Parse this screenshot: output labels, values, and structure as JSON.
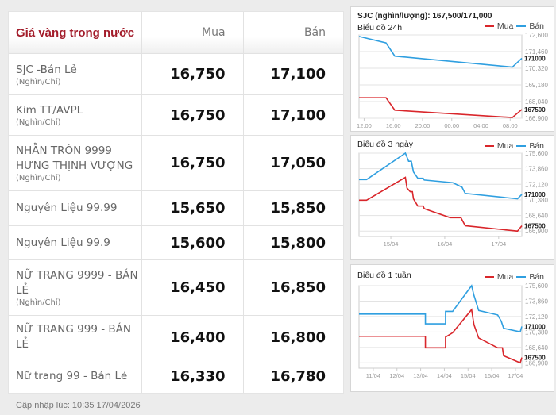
{
  "table": {
    "header": {
      "name": "Giá vàng trong nước",
      "buy": "Mua",
      "sell": "Bán"
    },
    "rows": [
      {
        "name": "SJC -Bán Lẻ",
        "unit": "(Nghìn/Chỉ)",
        "buy": "16,750",
        "sell": "17,100"
      },
      {
        "name": "Kim TT/AVPL",
        "unit": "(Nghìn/Chỉ)",
        "buy": "16,750",
        "sell": "17,100"
      },
      {
        "name": "NHẪN TRÒN 9999 HƯNG THỊNH VƯỢNG",
        "unit": "(Nghìn/Chỉ)",
        "buy": "16,750",
        "sell": "17,050"
      },
      {
        "name": "Nguyên Liệu 99.99",
        "unit": "",
        "buy": "15,650",
        "sell": "15,850"
      },
      {
        "name": "Nguyên Liệu 99.9",
        "unit": "",
        "buy": "15,600",
        "sell": "15,800"
      },
      {
        "name": "NỮ TRANG 9999 - BÁN LẺ",
        "unit": "(Nghìn/Chỉ)",
        "buy": "16,450",
        "sell": "16,850"
      },
      {
        "name": "NỮ TRANG 999 - BÁN LẺ",
        "unit": "",
        "buy": "16,400",
        "sell": "16,800"
      },
      {
        "name": "Nữ trang 99 - Bán Lẻ",
        "unit": "",
        "buy": "16,330",
        "sell": "16,780"
      }
    ]
  },
  "updated": "Cập nhập lúc: 10:35 17/04/2026",
  "chart_heading": "SJC (nghìn/lượng): 167,500/171,000",
  "colors": {
    "buy": "#d9262b",
    "sell": "#2f9fe0"
  },
  "chart_data": [
    {
      "type": "line",
      "title": "Biểu đồ 24h",
      "legend": [
        "Mua",
        "Bán"
      ],
      "legend_position": "top-right",
      "ylim": [
        166900,
        172600
      ],
      "yticks": [
        "172,600",
        "171,460",
        "170,320",
        "169,180",
        "168,040",
        "166,900"
      ],
      "ytick_values": [
        172600,
        171460,
        170320,
        169180,
        168040,
        166900
      ],
      "xticks": [
        "12:00",
        "16:00",
        "20:00",
        "00:00",
        "04:00",
        "08:00"
      ],
      "xtick_values": [
        1,
        5,
        9,
        13,
        17,
        21
      ],
      "xlim": [
        0.3,
        22.6
      ],
      "last_labels": [
        "171000",
        "167500"
      ],
      "series": [
        {
          "name": "Bán",
          "points": [
            [
              0.3,
              172500
            ],
            [
              4,
              172050
            ],
            [
              5.2,
              171150
            ],
            [
              21.3,
              170400
            ],
            [
              22.6,
              171000
            ]
          ]
        },
        {
          "name": "Mua",
          "points": [
            [
              0.3,
              168300
            ],
            [
              4,
              168300
            ],
            [
              5.2,
              167450
            ],
            [
              21.3,
              166950
            ],
            [
              22.6,
              167500
            ]
          ]
        }
      ]
    },
    {
      "type": "line",
      "title": "Biểu đồ 3 ngày",
      "legend": [
        "Mua",
        "Bán"
      ],
      "legend_position": "top-right",
      "ylim": [
        166300,
        175600
      ],
      "yticks": [
        "175,600",
        "173,860",
        "172,120",
        "170,380",
        "168,640",
        "166,900"
      ],
      "ytick_values": [
        175600,
        173860,
        172120,
        170380,
        168640,
        166900
      ],
      "xticks": [
        "15/04",
        "16/04",
        "17/04"
      ],
      "xtick_values": [
        0,
        1,
        2
      ],
      "xlim": [
        -0.59,
        2.43
      ],
      "last_labels": [
        "171000",
        "167500"
      ],
      "series": [
        {
          "name": "Bán",
          "points": [
            [
              -0.59,
              172650
            ],
            [
              -0.45,
              172650
            ],
            [
              0.27,
              175600
            ],
            [
              0.33,
              174700
            ],
            [
              0.38,
              174700
            ],
            [
              0.42,
              173500
            ],
            [
              0.5,
              172800
            ],
            [
              0.6,
              172800
            ],
            [
              0.62,
              172600
            ],
            [
              1.15,
              172300
            ],
            [
              1.32,
              171800
            ],
            [
              1.38,
              171100
            ],
            [
              2.35,
              170500
            ],
            [
              2.43,
              171000
            ]
          ]
        },
        {
          "name": "Mua",
          "points": [
            [
              -0.59,
              170350
            ],
            [
              -0.45,
              170350
            ],
            [
              0.27,
              172900
            ],
            [
              0.3,
              171700
            ],
            [
              0.36,
              171300
            ],
            [
              0.4,
              171300
            ],
            [
              0.42,
              170500
            ],
            [
              0.5,
              169700
            ],
            [
              0.6,
              169700
            ],
            [
              0.62,
              169400
            ],
            [
              1.1,
              168400
            ],
            [
              1.3,
              168400
            ],
            [
              1.38,
              167500
            ],
            [
              2.35,
              166900
            ],
            [
              2.43,
              167500
            ]
          ]
        }
      ]
    },
    {
      "type": "line",
      "title": "Biểu đồ 1 tuần",
      "legend": [
        "Mua",
        "Bán"
      ],
      "legend_position": "top-right",
      "ylim": [
        166300,
        175600
      ],
      "yticks": [
        "175,600",
        "173,860",
        "172,120",
        "170,380",
        "168,640",
        "166,900"
      ],
      "ytick_values": [
        175600,
        173860,
        172120,
        170380,
        168640,
        166900
      ],
      "xticks": [
        "11/04",
        "12/04",
        "13/04",
        "14/04",
        "15/04",
        "16/04",
        "17/04"
      ],
      "xtick_values": [
        0,
        1,
        2,
        3,
        4,
        5,
        6
      ],
      "xlim": [
        -0.6,
        6.27
      ],
      "last_labels": [
        "171000",
        "167500"
      ],
      "series": [
        {
          "name": "Bán",
          "points": [
            [
              -0.6,
              172400
            ],
            [
              2.2,
              172400
            ],
            [
              2.2,
              171300
            ],
            [
              3.05,
              171300
            ],
            [
              3.05,
              172700
            ],
            [
              3.35,
              172700
            ],
            [
              4.15,
              175600
            ],
            [
              4.25,
              174500
            ],
            [
              4.45,
              172800
            ],
            [
              5.25,
              172300
            ],
            [
              5.4,
              171600
            ],
            [
              5.5,
              170800
            ],
            [
              6.2,
              170400
            ],
            [
              6.27,
              171000
            ]
          ]
        },
        {
          "name": "Mua",
          "points": [
            [
              -0.6,
              169900
            ],
            [
              2.2,
              169900
            ],
            [
              2.2,
              168600
            ],
            [
              3.05,
              168600
            ],
            [
              3.05,
              169800
            ],
            [
              3.35,
              170300
            ],
            [
              4.15,
              172900
            ],
            [
              4.25,
              171200
            ],
            [
              4.45,
              169700
            ],
            [
              5.25,
              168600
            ],
            [
              5.45,
              168600
            ],
            [
              5.5,
              167700
            ],
            [
              6.2,
              166900
            ],
            [
              6.27,
              167500
            ]
          ]
        }
      ]
    }
  ]
}
